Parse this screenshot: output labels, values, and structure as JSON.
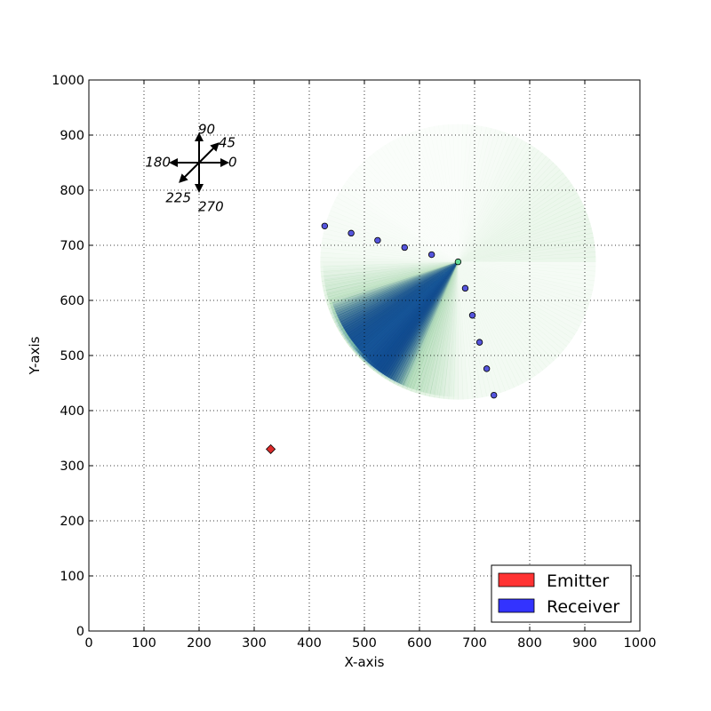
{
  "chart_data": {
    "type": "scatter",
    "title": "",
    "xlabel": "X-axis",
    "ylabel": "Y-axis",
    "xlim": [
      0,
      1000
    ],
    "ylim": [
      0,
      1000
    ],
    "xticks": [
      "0",
      "100",
      "200",
      "300",
      "400",
      "500",
      "600",
      "700",
      "800",
      "900",
      "1000"
    ],
    "yticks": [
      "0",
      "100",
      "200",
      "300",
      "400",
      "500",
      "600",
      "700",
      "800",
      "900",
      "1000"
    ],
    "grid": true,
    "grid_style": "dotted",
    "legend_position": "lower-right",
    "legend": [
      {
        "label": "Emitter",
        "color": "#ff3333"
      },
      {
        "label": "Receiver",
        "color": "#3333ff"
      }
    ],
    "emitter": {
      "x": 330,
      "y": 330,
      "marker": "diamond",
      "color": "#dd2b2b"
    },
    "receivers": [
      {
        "x": 428,
        "y": 735
      },
      {
        "x": 476,
        "y": 722
      },
      {
        "x": 524,
        "y": 709
      },
      {
        "x": 573,
        "y": 696
      },
      {
        "x": 622,
        "y": 683
      },
      {
        "x": 670,
        "y": 670,
        "highlight": true
      },
      {
        "x": 683,
        "y": 622
      },
      {
        "x": 696,
        "y": 573
      },
      {
        "x": 709,
        "y": 524
      },
      {
        "x": 722,
        "y": 476
      },
      {
        "x": 735,
        "y": 428
      }
    ],
    "receiver_color": "#5555dd",
    "highlight_color": "#66dd99",
    "beam_field": {
      "center": {
        "x": 670,
        "y": 670
      },
      "radius": 250,
      "peak_direction_deg": 225,
      "near_colormap": "blues",
      "far_colormap": "greens"
    },
    "compass": {
      "center": {
        "x": 200,
        "y": 850
      },
      "labels": [
        "90",
        "45",
        "0",
        "180",
        "225",
        "270"
      ],
      "directions_deg": [
        90,
        45,
        0,
        180,
        225,
        270
      ]
    }
  }
}
